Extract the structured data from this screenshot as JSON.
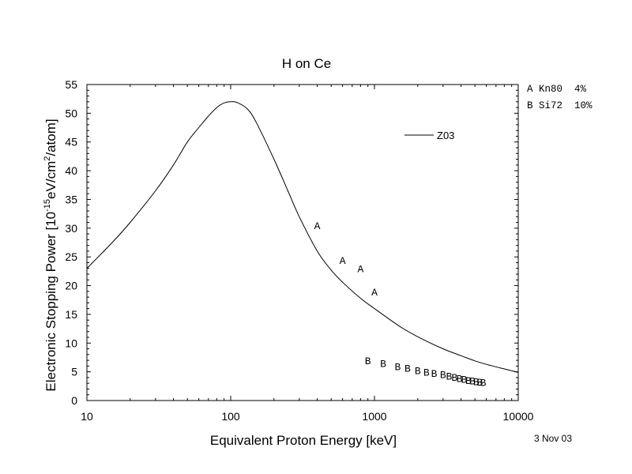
{
  "date_stamp": "3 Nov 03",
  "reference_legend": [
    {
      "marker": "A",
      "text": "Kn80  4%"
    },
    {
      "marker": "B",
      "text": "Si72  10%"
    }
  ],
  "chart_data": {
    "type": "line",
    "title": "H on Ce",
    "xlabel": "Equivalent Proton Energy [keV]",
    "ylabel_parts": {
      "pre": "Electronic Stopping Power [10",
      "sup1": "-15",
      "mid": "eV/cm",
      "sup2": "2",
      "post": "/atom]"
    },
    "x_scale": "log",
    "xlim": [
      10,
      10000
    ],
    "ylim": [
      0,
      55
    ],
    "x_ticks": [
      10,
      100,
      1000,
      10000
    ],
    "x_tick_labels": [
      "10",
      "100",
      "1000",
      "10000"
    ],
    "y_ticks": [
      0,
      5,
      10,
      15,
      20,
      25,
      30,
      35,
      40,
      45,
      50,
      55
    ],
    "y_tick_labels": [
      "0",
      "5",
      "10",
      "15",
      "20",
      "25",
      "30",
      "35",
      "40",
      "45",
      "50",
      "55"
    ],
    "legend": {
      "placement": "top-right",
      "entries": [
        "Z03"
      ]
    },
    "series": [
      {
        "name": "Z03",
        "style": "line",
        "x": [
          10,
          15,
          20,
          30,
          40,
          50,
          60,
          70,
          80,
          90,
          100,
          110,
          130,
          150,
          200,
          250,
          300,
          400,
          500,
          600,
          800,
          1000,
          1500,
          2000,
          3000,
          4000,
          5000,
          6000,
          8000,
          10000
        ],
        "y": [
          23,
          27.5,
          31,
          36.5,
          41,
          45,
          47.5,
          49.5,
          51,
          51.8,
          52,
          51.9,
          50.8,
          48.5,
          42,
          36.5,
          32,
          26,
          22.7,
          20.6,
          17.8,
          16.0,
          12.9,
          11.1,
          9.0,
          7.8,
          6.9,
          6.3,
          5.5,
          4.9
        ]
      },
      {
        "name": "A",
        "style": "marker",
        "marker": "A",
        "x": [
          400,
          600,
          800,
          1000
        ],
        "y": [
          30.5,
          24.5,
          23,
          19
        ]
      },
      {
        "name": "B",
        "style": "marker",
        "marker": "B",
        "x": [
          900,
          1150,
          1450,
          1700,
          2000,
          2300,
          2600,
          3000,
          3300,
          3600,
          3900,
          4200,
          4500,
          4800,
          5100,
          5400,
          5700
        ],
        "y": [
          7,
          6.5,
          6,
          5.7,
          5.3,
          5,
          4.8,
          4.6,
          4.3,
          4.1,
          3.9,
          3.8,
          3.6,
          3.5,
          3.4,
          3.3,
          3.2
        ]
      }
    ]
  }
}
